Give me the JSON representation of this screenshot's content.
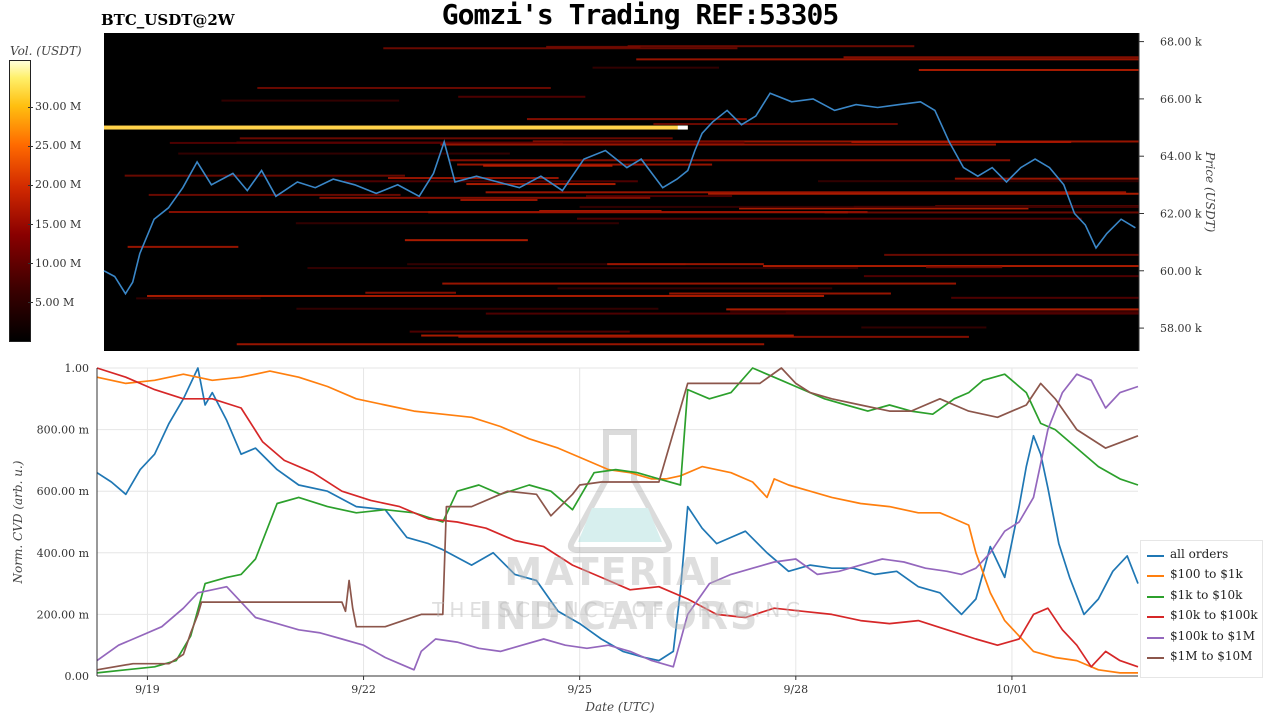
{
  "header": {
    "title": "Gomzi's Trading REF:53305",
    "pair": "BTC_USDT@2W"
  },
  "watermark": {
    "title": "MATERIAL INDICATORS",
    "subtitle": "THE SCIENCE OF TRADING"
  },
  "colors": {
    "heatmap_bg": "#000000",
    "price_line": "#3a87c8",
    "bright_wall": "#ffd24a"
  },
  "chart_data": [
    {
      "type": "heatmap",
      "title": "BTC_USDT@2W",
      "ylabel": "Price (USDT)",
      "ylim": [
        57200,
        68300
      ],
      "y_ticks": [
        "58.00 k",
        "60.00 k",
        "62.00 k",
        "64.00 k",
        "66.00 k",
        "68.00 k"
      ],
      "y_tick_values": [
        58000,
        60000,
        62000,
        64000,
        66000,
        68000
      ],
      "colorbar": {
        "label": "Vol. (USDT)",
        "ticks": [
          "5.00 M",
          "10.00 M",
          "15.00 M",
          "20.00 M",
          "25.00 M",
          "30.00 M"
        ],
        "tick_values": [
          5,
          10,
          15,
          20,
          25,
          30
        ],
        "range": [
          0,
          36
        ]
      },
      "xlim": [
        0,
        14.45
      ],
      "price_series": {
        "name": "",
        "x": [
          0,
          0.15,
          0.3,
          0.4,
          0.5,
          0.7,
          0.9,
          1.1,
          1.3,
          1.5,
          1.8,
          2.0,
          2.2,
          2.4,
          2.7,
          2.95,
          3.2,
          3.5,
          3.8,
          4.1,
          4.4,
          4.6,
          4.75,
          4.9,
          5.2,
          5.5,
          5.8,
          6.1,
          6.4,
          6.7,
          7.0,
          7.3,
          7.5,
          7.8,
          8.0,
          8.15,
          8.25,
          8.35,
          8.5,
          8.7,
          8.9,
          9.1,
          9.3,
          9.6,
          9.9,
          10.2,
          10.5,
          10.8,
          11.1,
          11.4,
          11.6,
          11.8,
          12.0,
          12.2,
          12.4,
          12.6,
          12.8,
          13.0,
          13.2,
          13.4,
          13.55,
          13.7,
          13.85,
          14.0,
          14.2,
          14.4
        ],
        "values": [
          60000,
          59800,
          59200,
          59600,
          60600,
          61800,
          62200,
          62900,
          63800,
          63000,
          63400,
          62800,
          63500,
          62600,
          63100,
          62900,
          63200,
          63000,
          62700,
          63000,
          62600,
          63400,
          64500,
          63100,
          63300,
          63100,
          62900,
          63300,
          62800,
          63900,
          64200,
          63600,
          63900,
          62900,
          63200,
          63500,
          64200,
          64800,
          65200,
          65600,
          65100,
          65400,
          66200,
          65900,
          66000,
          65600,
          65800,
          65700,
          65800,
          65900,
          65600,
          64500,
          63600,
          63300,
          63600,
          63100,
          63600,
          63900,
          63600,
          63000,
          62000,
          61600,
          60800,
          61300,
          61800,
          61500
        ]
      },
      "bright_wall": {
        "price": 65000,
        "x_range": [
          0,
          8.15
        ]
      }
    },
    {
      "type": "line",
      "xlabel": "Date (UTC)",
      "ylabel": "Norm. CVD (arb. u.)",
      "xlim": [
        0,
        14.45
      ],
      "ylim": [
        0,
        1
      ],
      "x_ticks": [
        "9/19",
        "9/22",
        "9/25",
        "9/28",
        "10/01"
      ],
      "x_tick_values": [
        0.7,
        3.7,
        6.7,
        9.7,
        12.7
      ],
      "y_ticks": [
        "0.00",
        "200.00 m",
        "400.00 m",
        "600.00 m",
        "800.00 m",
        "1.00"
      ],
      "y_tick_values": [
        0,
        0.2,
        0.4,
        0.6,
        0.8,
        1.0
      ],
      "legend_position": "bottom-right",
      "series": [
        {
          "name": "all orders",
          "color": "#1f77b4",
          "x": [
            0,
            0.2,
            0.4,
            0.6,
            0.8,
            1.0,
            1.2,
            1.4,
            1.5,
            1.6,
            1.8,
            2.0,
            2.2,
            2.5,
            2.8,
            3.2,
            3.6,
            4.0,
            4.3,
            4.6,
            4.8,
            5.2,
            5.5,
            5.8,
            6.1,
            6.4,
            6.7,
            7.0,
            7.3,
            7.6,
            7.8,
            8.0,
            8.1,
            8.2,
            8.4,
            8.6,
            8.8,
            9.0,
            9.3,
            9.6,
            9.9,
            10.2,
            10.5,
            10.8,
            11.1,
            11.4,
            11.7,
            12.0,
            12.2,
            12.4,
            12.6,
            12.8,
            12.9,
            13.0,
            13.1,
            13.2,
            13.35,
            13.5,
            13.7,
            13.9,
            14.1,
            14.3,
            14.45
          ],
          "values": [
            0.66,
            0.63,
            0.59,
            0.67,
            0.72,
            0.82,
            0.9,
            1.0,
            0.88,
            0.92,
            0.83,
            0.72,
            0.74,
            0.67,
            0.62,
            0.6,
            0.55,
            0.54,
            0.45,
            0.43,
            0.41,
            0.36,
            0.4,
            0.33,
            0.31,
            0.21,
            0.17,
            0.12,
            0.08,
            0.06,
            0.05,
            0.08,
            0.28,
            0.55,
            0.48,
            0.43,
            0.45,
            0.47,
            0.4,
            0.34,
            0.36,
            0.35,
            0.35,
            0.33,
            0.34,
            0.29,
            0.27,
            0.2,
            0.25,
            0.42,
            0.32,
            0.55,
            0.68,
            0.78,
            0.72,
            0.61,
            0.43,
            0.32,
            0.2,
            0.25,
            0.34,
            0.39,
            0.3
          ]
        },
        {
          "name": "$100 to $1k",
          "color": "#ff7f0e",
          "x": [
            0,
            0.4,
            0.8,
            1.2,
            1.6,
            2.0,
            2.4,
            2.8,
            3.2,
            3.6,
            4.0,
            4.4,
            4.8,
            5.2,
            5.6,
            6.0,
            6.4,
            6.8,
            7.1,
            7.4,
            7.7,
            7.9,
            8.1,
            8.4,
            8.8,
            9.1,
            9.3,
            9.4,
            9.6,
            9.9,
            10.2,
            10.6,
            11.0,
            11.4,
            11.7,
            11.9,
            12.0,
            12.1,
            12.2,
            12.4,
            12.6,
            12.8,
            13.0,
            13.3,
            13.6,
            13.9,
            14.2,
            14.45
          ],
          "values": [
            0.97,
            0.95,
            0.96,
            0.98,
            0.96,
            0.97,
            0.99,
            0.97,
            0.94,
            0.9,
            0.88,
            0.86,
            0.85,
            0.84,
            0.81,
            0.77,
            0.74,
            0.7,
            0.67,
            0.66,
            0.64,
            0.64,
            0.65,
            0.68,
            0.66,
            0.63,
            0.58,
            0.64,
            0.62,
            0.6,
            0.58,
            0.56,
            0.55,
            0.53,
            0.53,
            0.51,
            0.5,
            0.49,
            0.4,
            0.27,
            0.18,
            0.13,
            0.08,
            0.06,
            0.05,
            0.02,
            0.01,
            0.01
          ]
        },
        {
          "name": "$1k to $10k",
          "color": "#2ca02c",
          "x": [
            0,
            0.4,
            0.8,
            1.1,
            1.3,
            1.5,
            1.8,
            2.0,
            2.2,
            2.5,
            2.8,
            3.2,
            3.6,
            4.0,
            4.4,
            4.8,
            5.0,
            5.3,
            5.6,
            6.0,
            6.3,
            6.6,
            6.9,
            7.2,
            7.5,
            7.8,
            8.1,
            8.2,
            8.5,
            8.8,
            9.1,
            9.3,
            9.5,
            9.8,
            10.1,
            10.4,
            10.7,
            11.0,
            11.3,
            11.6,
            11.9,
            12.1,
            12.3,
            12.6,
            12.9,
            13.1,
            13.3,
            13.6,
            13.9,
            14.2,
            14.45
          ],
          "values": [
            0.01,
            0.02,
            0.03,
            0.05,
            0.13,
            0.3,
            0.32,
            0.33,
            0.38,
            0.56,
            0.58,
            0.55,
            0.53,
            0.54,
            0.53,
            0.5,
            0.6,
            0.62,
            0.59,
            0.62,
            0.6,
            0.54,
            0.66,
            0.67,
            0.66,
            0.64,
            0.62,
            0.93,
            0.9,
            0.92,
            1.0,
            0.98,
            0.96,
            0.93,
            0.9,
            0.88,
            0.86,
            0.88,
            0.86,
            0.85,
            0.9,
            0.92,
            0.96,
            0.98,
            0.92,
            0.82,
            0.8,
            0.74,
            0.68,
            0.64,
            0.62
          ]
        },
        {
          "name": "$10k to $100k",
          "color": "#d62728",
          "x": [
            0,
            0.4,
            0.8,
            1.2,
            1.6,
            2.0,
            2.3,
            2.6,
            3.0,
            3.4,
            3.8,
            4.2,
            4.6,
            5.0,
            5.4,
            5.8,
            6.2,
            6.6,
            7.0,
            7.4,
            7.8,
            8.2,
            8.6,
            9.0,
            9.4,
            9.8,
            10.2,
            10.6,
            11.0,
            11.4,
            11.8,
            12.2,
            12.5,
            12.8,
            13.0,
            13.2,
            13.4,
            13.6,
            13.8,
            14.0,
            14.2,
            14.45
          ],
          "values": [
            1.0,
            0.97,
            0.93,
            0.9,
            0.9,
            0.87,
            0.76,
            0.7,
            0.66,
            0.6,
            0.57,
            0.55,
            0.51,
            0.5,
            0.48,
            0.44,
            0.42,
            0.36,
            0.32,
            0.28,
            0.29,
            0.25,
            0.2,
            0.19,
            0.22,
            0.21,
            0.2,
            0.18,
            0.17,
            0.18,
            0.15,
            0.12,
            0.1,
            0.12,
            0.2,
            0.22,
            0.15,
            0.1,
            0.03,
            0.08,
            0.05,
            0.03
          ]
        },
        {
          "name": "$100k to $1M",
          "color": "#9467bd",
          "x": [
            0,
            0.3,
            0.6,
            0.9,
            1.2,
            1.4,
            1.6,
            1.8,
            2.0,
            2.2,
            2.5,
            2.8,
            3.1,
            3.4,
            3.7,
            4.0,
            4.2,
            4.4,
            4.5,
            4.7,
            5.0,
            5.3,
            5.6,
            5.9,
            6.2,
            6.5,
            6.8,
            7.1,
            7.4,
            7.7,
            8.0,
            8.2,
            8.5,
            8.8,
            9.1,
            9.4,
            9.7,
            10.0,
            10.3,
            10.6,
            10.9,
            11.2,
            11.5,
            11.8,
            12.0,
            12.2,
            12.4,
            12.6,
            12.8,
            13.0,
            13.2,
            13.4,
            13.6,
            13.8,
            14.0,
            14.2,
            14.45
          ],
          "values": [
            0.05,
            0.1,
            0.13,
            0.16,
            0.22,
            0.27,
            0.28,
            0.29,
            0.24,
            0.19,
            0.17,
            0.15,
            0.14,
            0.12,
            0.1,
            0.06,
            0.04,
            0.02,
            0.08,
            0.12,
            0.11,
            0.09,
            0.08,
            0.1,
            0.12,
            0.1,
            0.09,
            0.1,
            0.08,
            0.05,
            0.03,
            0.2,
            0.3,
            0.33,
            0.35,
            0.37,
            0.38,
            0.33,
            0.34,
            0.36,
            0.38,
            0.37,
            0.35,
            0.34,
            0.33,
            0.35,
            0.4,
            0.47,
            0.5,
            0.58,
            0.8,
            0.92,
            0.98,
            0.96,
            0.87,
            0.92,
            0.94
          ]
        },
        {
          "name": "$1M to $10M",
          "color": "#8c564b",
          "x": [
            0,
            0.5,
            1.0,
            1.2,
            1.3,
            1.4,
            1.45,
            2.2,
            2.5,
            3.4,
            3.45,
            3.5,
            3.55,
            3.6,
            4.0,
            4.5,
            4.8,
            4.85,
            5.2,
            5.6,
            5.7,
            6.1,
            6.3,
            6.6,
            6.7,
            7.0,
            7.4,
            7.8,
            8.2,
            8.5,
            8.9,
            9.2,
            9.5,
            9.7,
            9.9,
            10.2,
            10.6,
            11.0,
            11.3,
            11.7,
            12.1,
            12.5,
            12.9,
            13.1,
            13.3,
            13.6,
            14.0,
            14.45
          ],
          "values": [
            0.02,
            0.04,
            0.04,
            0.07,
            0.14,
            0.2,
            0.24,
            0.24,
            0.24,
            0.24,
            0.21,
            0.31,
            0.22,
            0.16,
            0.16,
            0.2,
            0.2,
            0.55,
            0.55,
            0.59,
            0.6,
            0.59,
            0.52,
            0.59,
            0.62,
            0.63,
            0.63,
            0.63,
            0.95,
            0.95,
            0.95,
            0.95,
            1.0,
            0.95,
            0.92,
            0.9,
            0.88,
            0.86,
            0.86,
            0.9,
            0.86,
            0.84,
            0.88,
            0.95,
            0.9,
            0.8,
            0.74,
            0.78
          ]
        }
      ]
    }
  ]
}
